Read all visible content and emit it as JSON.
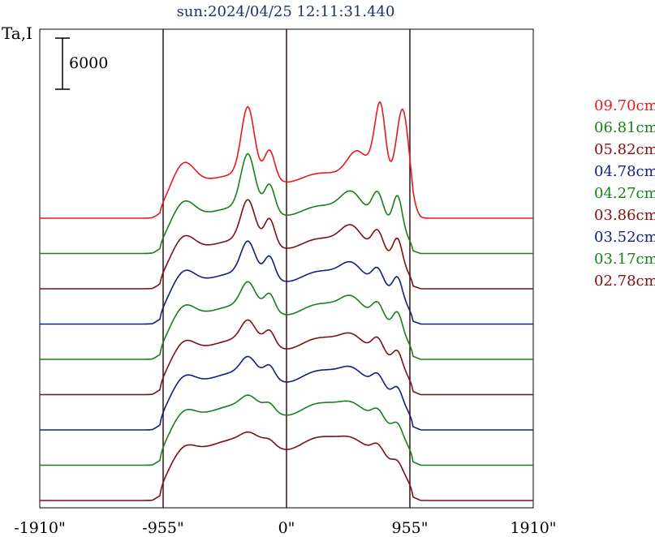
{
  "chart_data": {
    "type": "line",
    "title": "sun:2024/04/25 12:11:31.440",
    "ylabel": "Ta,I",
    "xlim": [
      -1910,
      1910
    ],
    "x_ticks": [
      {
        "value": -1910,
        "label": "-1910\""
      },
      {
        "value": -955,
        "label": "-955\""
      },
      {
        "value": 0,
        "label": "0\""
      },
      {
        "value": 955,
        "label": "955\""
      },
      {
        "value": 1910,
        "label": "1910\""
      }
    ],
    "vertical_lines": [
      -955,
      0,
      955
    ],
    "scale_bar": {
      "value": 6000,
      "label": "6000"
    },
    "series": [
      {
        "name": "09.70cm",
        "color": "#e8191b",
        "offset": 8,
        "amp": 1.0,
        "disk": 0.34,
        "peaks": [
          [
            -300,
            0.85,
            70
          ],
          [
            -130,
            0.35,
            55
          ],
          [
            -800,
            0.35,
            120
          ],
          [
            550,
            0.35,
            110
          ],
          [
            720,
            0.75,
            70
          ],
          [
            900,
            1.15,
            70
          ],
          [
            730,
            0.3,
            45
          ]
        ]
      },
      {
        "name": "06.81cm",
        "color": "#178017",
        "offset": 7,
        "amp": 0.95,
        "disk": 0.36,
        "peaks": [
          [
            -300,
            0.7,
            75
          ],
          [
            -130,
            0.35,
            55
          ],
          [
            -800,
            0.3,
            120
          ],
          [
            500,
            0.25,
            110
          ],
          [
            705,
            0.35,
            60
          ],
          [
            860,
            0.45,
            50
          ]
        ]
      },
      {
        "name": "05.82cm",
        "color": "#7f1010",
        "offset": 6,
        "amp": 0.9,
        "disk": 0.38,
        "peaks": [
          [
            -300,
            0.55,
            75
          ],
          [
            -130,
            0.35,
            55
          ],
          [
            -800,
            0.3,
            120
          ],
          [
            500,
            0.25,
            110
          ],
          [
            705,
            0.3,
            60
          ],
          [
            860,
            0.35,
            50
          ]
        ]
      },
      {
        "name": "04.78cm",
        "color": "#102080",
        "offset": 5,
        "amp": 0.85,
        "disk": 0.4,
        "peaks": [
          [
            -300,
            0.45,
            75
          ],
          [
            -130,
            0.3,
            55
          ],
          [
            -800,
            0.3,
            120
          ],
          [
            500,
            0.2,
            110
          ],
          [
            705,
            0.25,
            60
          ],
          [
            860,
            0.3,
            50
          ]
        ]
      },
      {
        "name": "04.27cm",
        "color": "#178017",
        "offset": 4,
        "amp": 0.8,
        "disk": 0.42,
        "peaks": [
          [
            -300,
            0.35,
            75
          ],
          [
            -130,
            0.25,
            55
          ],
          [
            -800,
            0.3,
            120
          ],
          [
            500,
            0.2,
            110
          ],
          [
            705,
            0.25,
            60
          ],
          [
            860,
            0.3,
            50
          ]
        ]
      },
      {
        "name": "03.86cm",
        "color": "#7f1010",
        "offset": 3,
        "amp": 0.75,
        "disk": 0.43,
        "peaks": [
          [
            -300,
            0.3,
            75
          ],
          [
            -130,
            0.22,
            55
          ],
          [
            -800,
            0.3,
            120
          ],
          [
            500,
            0.15,
            110
          ],
          [
            705,
            0.25,
            60
          ],
          [
            860,
            0.25,
            50
          ]
        ]
      },
      {
        "name": "03.52cm",
        "color": "#102080",
        "offset": 2,
        "amp": 0.7,
        "disk": 0.45,
        "peaks": [
          [
            -300,
            0.25,
            75
          ],
          [
            -130,
            0.2,
            55
          ],
          [
            -800,
            0.3,
            120
          ],
          [
            500,
            0.15,
            110
          ],
          [
            705,
            0.22,
            60
          ],
          [
            860,
            0.22,
            50
          ]
        ]
      },
      {
        "name": "03.17cm",
        "color": "#178017",
        "offset": 1,
        "amp": 0.65,
        "disk": 0.47,
        "peaks": [
          [
            -300,
            0.15,
            75
          ],
          [
            -130,
            0.12,
            55
          ],
          [
            -800,
            0.3,
            120
          ],
          [
            500,
            0.12,
            110
          ],
          [
            705,
            0.2,
            60
          ],
          [
            860,
            0.2,
            50
          ]
        ]
      },
      {
        "name": "02.78cm",
        "color": "#7f1010",
        "offset": 0,
        "amp": 0.6,
        "disk": 0.48,
        "peaks": [
          [
            -300,
            0.1,
            75
          ],
          [
            -130,
            0.08,
            55
          ],
          [
            -800,
            0.3,
            120
          ],
          [
            500,
            0.1,
            110
          ],
          [
            705,
            0.2,
            60
          ],
          [
            860,
            0.15,
            50
          ]
        ]
      }
    ]
  }
}
